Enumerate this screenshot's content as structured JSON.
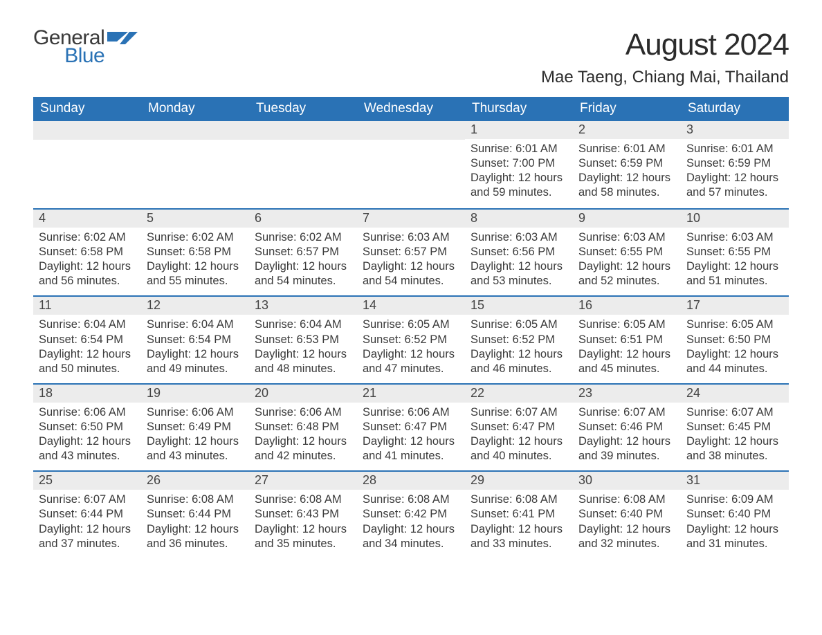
{
  "logo": {
    "word1": "General",
    "word2": "Blue",
    "icon_color": "#2a72b5"
  },
  "header": {
    "month_title": "August 2024",
    "location": "Mae Taeng, Chiang Mai, Thailand"
  },
  "colors": {
    "header_bg": "#2a72b5",
    "row_divider": "#2a72b5",
    "daynum_bg": "#ececec",
    "text": "#333333",
    "logo_blue": "#2a72b5"
  },
  "calendar": {
    "day_names": [
      "Sunday",
      "Monday",
      "Tuesday",
      "Wednesday",
      "Thursday",
      "Friday",
      "Saturday"
    ],
    "weeks": [
      [
        null,
        null,
        null,
        null,
        {
          "n": "1",
          "sunrise": "Sunrise: 6:01 AM",
          "sunset": "Sunset: 7:00 PM",
          "day1": "Daylight: 12 hours",
          "day2": "and 59 minutes."
        },
        {
          "n": "2",
          "sunrise": "Sunrise: 6:01 AM",
          "sunset": "Sunset: 6:59 PM",
          "day1": "Daylight: 12 hours",
          "day2": "and 58 minutes."
        },
        {
          "n": "3",
          "sunrise": "Sunrise: 6:01 AM",
          "sunset": "Sunset: 6:59 PM",
          "day1": "Daylight: 12 hours",
          "day2": "and 57 minutes."
        }
      ],
      [
        {
          "n": "4",
          "sunrise": "Sunrise: 6:02 AM",
          "sunset": "Sunset: 6:58 PM",
          "day1": "Daylight: 12 hours",
          "day2": "and 56 minutes."
        },
        {
          "n": "5",
          "sunrise": "Sunrise: 6:02 AM",
          "sunset": "Sunset: 6:58 PM",
          "day1": "Daylight: 12 hours",
          "day2": "and 55 minutes."
        },
        {
          "n": "6",
          "sunrise": "Sunrise: 6:02 AM",
          "sunset": "Sunset: 6:57 PM",
          "day1": "Daylight: 12 hours",
          "day2": "and 54 minutes."
        },
        {
          "n": "7",
          "sunrise": "Sunrise: 6:03 AM",
          "sunset": "Sunset: 6:57 PM",
          "day1": "Daylight: 12 hours",
          "day2": "and 54 minutes."
        },
        {
          "n": "8",
          "sunrise": "Sunrise: 6:03 AM",
          "sunset": "Sunset: 6:56 PM",
          "day1": "Daylight: 12 hours",
          "day2": "and 53 minutes."
        },
        {
          "n": "9",
          "sunrise": "Sunrise: 6:03 AM",
          "sunset": "Sunset: 6:55 PM",
          "day1": "Daylight: 12 hours",
          "day2": "and 52 minutes."
        },
        {
          "n": "10",
          "sunrise": "Sunrise: 6:03 AM",
          "sunset": "Sunset: 6:55 PM",
          "day1": "Daylight: 12 hours",
          "day2": "and 51 minutes."
        }
      ],
      [
        {
          "n": "11",
          "sunrise": "Sunrise: 6:04 AM",
          "sunset": "Sunset: 6:54 PM",
          "day1": "Daylight: 12 hours",
          "day2": "and 50 minutes."
        },
        {
          "n": "12",
          "sunrise": "Sunrise: 6:04 AM",
          "sunset": "Sunset: 6:54 PM",
          "day1": "Daylight: 12 hours",
          "day2": "and 49 minutes."
        },
        {
          "n": "13",
          "sunrise": "Sunrise: 6:04 AM",
          "sunset": "Sunset: 6:53 PM",
          "day1": "Daylight: 12 hours",
          "day2": "and 48 minutes."
        },
        {
          "n": "14",
          "sunrise": "Sunrise: 6:05 AM",
          "sunset": "Sunset: 6:52 PM",
          "day1": "Daylight: 12 hours",
          "day2": "and 47 minutes."
        },
        {
          "n": "15",
          "sunrise": "Sunrise: 6:05 AM",
          "sunset": "Sunset: 6:52 PM",
          "day1": "Daylight: 12 hours",
          "day2": "and 46 minutes."
        },
        {
          "n": "16",
          "sunrise": "Sunrise: 6:05 AM",
          "sunset": "Sunset: 6:51 PM",
          "day1": "Daylight: 12 hours",
          "day2": "and 45 minutes."
        },
        {
          "n": "17",
          "sunrise": "Sunrise: 6:05 AM",
          "sunset": "Sunset: 6:50 PM",
          "day1": "Daylight: 12 hours",
          "day2": "and 44 minutes."
        }
      ],
      [
        {
          "n": "18",
          "sunrise": "Sunrise: 6:06 AM",
          "sunset": "Sunset: 6:50 PM",
          "day1": "Daylight: 12 hours",
          "day2": "and 43 minutes."
        },
        {
          "n": "19",
          "sunrise": "Sunrise: 6:06 AM",
          "sunset": "Sunset: 6:49 PM",
          "day1": "Daylight: 12 hours",
          "day2": "and 43 minutes."
        },
        {
          "n": "20",
          "sunrise": "Sunrise: 6:06 AM",
          "sunset": "Sunset: 6:48 PM",
          "day1": "Daylight: 12 hours",
          "day2": "and 42 minutes."
        },
        {
          "n": "21",
          "sunrise": "Sunrise: 6:06 AM",
          "sunset": "Sunset: 6:47 PM",
          "day1": "Daylight: 12 hours",
          "day2": "and 41 minutes."
        },
        {
          "n": "22",
          "sunrise": "Sunrise: 6:07 AM",
          "sunset": "Sunset: 6:47 PM",
          "day1": "Daylight: 12 hours",
          "day2": "and 40 minutes."
        },
        {
          "n": "23",
          "sunrise": "Sunrise: 6:07 AM",
          "sunset": "Sunset: 6:46 PM",
          "day1": "Daylight: 12 hours",
          "day2": "and 39 minutes."
        },
        {
          "n": "24",
          "sunrise": "Sunrise: 6:07 AM",
          "sunset": "Sunset: 6:45 PM",
          "day1": "Daylight: 12 hours",
          "day2": "and 38 minutes."
        }
      ],
      [
        {
          "n": "25",
          "sunrise": "Sunrise: 6:07 AM",
          "sunset": "Sunset: 6:44 PM",
          "day1": "Daylight: 12 hours",
          "day2": "and 37 minutes."
        },
        {
          "n": "26",
          "sunrise": "Sunrise: 6:08 AM",
          "sunset": "Sunset: 6:44 PM",
          "day1": "Daylight: 12 hours",
          "day2": "and 36 minutes."
        },
        {
          "n": "27",
          "sunrise": "Sunrise: 6:08 AM",
          "sunset": "Sunset: 6:43 PM",
          "day1": "Daylight: 12 hours",
          "day2": "and 35 minutes."
        },
        {
          "n": "28",
          "sunrise": "Sunrise: 6:08 AM",
          "sunset": "Sunset: 6:42 PM",
          "day1": "Daylight: 12 hours",
          "day2": "and 34 minutes."
        },
        {
          "n": "29",
          "sunrise": "Sunrise: 6:08 AM",
          "sunset": "Sunset: 6:41 PM",
          "day1": "Daylight: 12 hours",
          "day2": "and 33 minutes."
        },
        {
          "n": "30",
          "sunrise": "Sunrise: 6:08 AM",
          "sunset": "Sunset: 6:40 PM",
          "day1": "Daylight: 12 hours",
          "day2": "and 32 minutes."
        },
        {
          "n": "31",
          "sunrise": "Sunrise: 6:09 AM",
          "sunset": "Sunset: 6:40 PM",
          "day1": "Daylight: 12 hours",
          "day2": "and 31 minutes."
        }
      ]
    ]
  }
}
